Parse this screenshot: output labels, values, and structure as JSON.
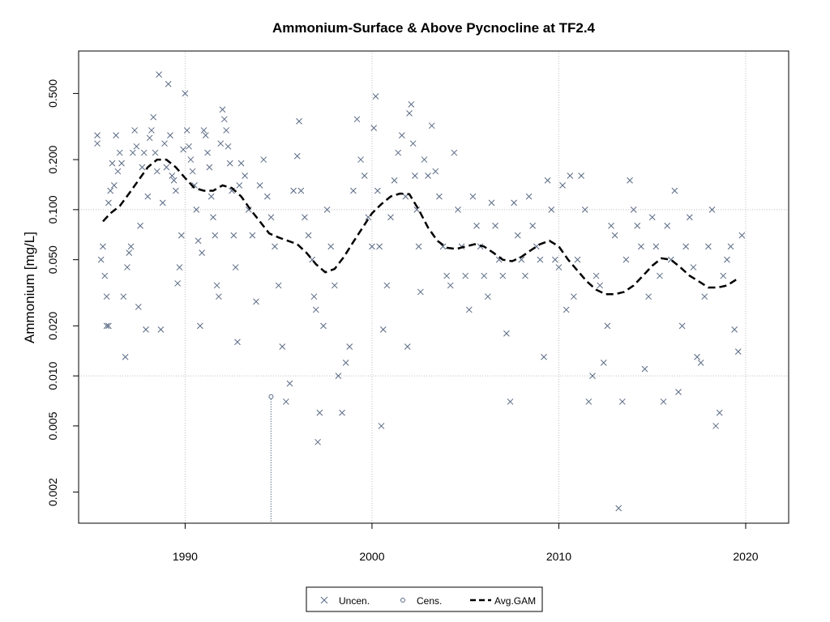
{
  "chart_data": {
    "type": "scatter",
    "title": "Ammonium-Surface & Above Pycnocline at TF2.4",
    "xlabel": "",
    "ylabel": "Ammonium [mg/L]",
    "yscale": "log",
    "xlim": [
      1984.3,
      2022.3
    ],
    "ylim": [
      0.0013,
      0.9
    ],
    "xticks": [
      1990,
      2000,
      2010,
      2020
    ],
    "yticks": [
      0.002,
      0.005,
      0.01,
      0.02,
      0.05,
      0.1,
      0.2,
      0.5
    ],
    "ytick_labels": [
      "0.002",
      "0.005",
      "0.010",
      "0.020",
      "0.050",
      "0.100",
      "0.200",
      "0.500"
    ],
    "grid": true,
    "grid_x": [
      1990,
      2000,
      2010,
      2020
    ],
    "grid_y": [
      0.01,
      0.1
    ],
    "colors": {
      "uncensored": "#5a6a85",
      "censored": "#5a6a85",
      "gam": "#000000",
      "grid": "#bfbfbf"
    },
    "legend_position": "bottom-center",
    "legend": [
      {
        "label": "Uncen.",
        "marker": "x"
      },
      {
        "label": "Cens.",
        "marker": "circle"
      },
      {
        "label": "Avg.GAM",
        "marker": "dashed-line"
      }
    ],
    "series": [
      {
        "name": "Uncen.",
        "marker": "x",
        "points": [
          [
            1985.3,
            0.28
          ],
          [
            1985.3,
            0.25
          ],
          [
            1985.5,
            0.05
          ],
          [
            1985.6,
            0.06
          ],
          [
            1985.7,
            0.04
          ],
          [
            1985.8,
            0.02
          ],
          [
            1985.9,
            0.02
          ],
          [
            1985.8,
            0.03
          ],
          [
            1985.9,
            0.11
          ],
          [
            1986.0,
            0.13
          ],
          [
            1986.1,
            0.19
          ],
          [
            1986.2,
            0.14
          ],
          [
            1986.3,
            0.28
          ],
          [
            1986.4,
            0.17
          ],
          [
            1986.5,
            0.22
          ],
          [
            1986.6,
            0.19
          ],
          [
            1986.7,
            0.03
          ],
          [
            1986.8,
            0.013
          ],
          [
            1986.9,
            0.045
          ],
          [
            1987.0,
            0.055
          ],
          [
            1987.1,
            0.06
          ],
          [
            1987.2,
            0.22
          ],
          [
            1987.3,
            0.3
          ],
          [
            1987.4,
            0.24
          ],
          [
            1987.5,
            0.026
          ],
          [
            1987.6,
            0.08
          ],
          [
            1987.7,
            0.18
          ],
          [
            1987.8,
            0.22
          ],
          [
            1987.9,
            0.019
          ],
          [
            1988.0,
            0.12
          ],
          [
            1988.1,
            0.27
          ],
          [
            1988.2,
            0.3
          ],
          [
            1988.3,
            0.36
          ],
          [
            1988.4,
            0.22
          ],
          [
            1988.5,
            0.17
          ],
          [
            1988.6,
            0.65
          ],
          [
            1988.7,
            0.019
          ],
          [
            1988.8,
            0.11
          ],
          [
            1988.9,
            0.25
          ],
          [
            1989.0,
            0.18
          ],
          [
            1989.1,
            0.57
          ],
          [
            1989.2,
            0.28
          ],
          [
            1989.3,
            0.16
          ],
          [
            1989.4,
            0.15
          ],
          [
            1989.5,
            0.13
          ],
          [
            1989.6,
            0.036
          ],
          [
            1989.7,
            0.045
          ],
          [
            1989.8,
            0.07
          ],
          [
            1989.9,
            0.23
          ],
          [
            1990.0,
            0.5
          ],
          [
            1990.1,
            0.3
          ],
          [
            1990.2,
            0.24
          ],
          [
            1990.3,
            0.2
          ],
          [
            1990.4,
            0.17
          ],
          [
            1990.5,
            0.14
          ],
          [
            1990.6,
            0.1
          ],
          [
            1990.7,
            0.065
          ],
          [
            1990.8,
            0.02
          ],
          [
            1990.9,
            0.055
          ],
          [
            1991.0,
            0.3
          ],
          [
            1991.1,
            0.28
          ],
          [
            1991.2,
            0.22
          ],
          [
            1991.3,
            0.18
          ],
          [
            1991.4,
            0.12
          ],
          [
            1991.5,
            0.09
          ],
          [
            1991.6,
            0.07
          ],
          [
            1991.7,
            0.035
          ],
          [
            1991.8,
            0.03
          ],
          [
            1991.9,
            0.25
          ],
          [
            1992.0,
            0.4
          ],
          [
            1992.1,
            0.35
          ],
          [
            1992.2,
            0.3
          ],
          [
            1992.3,
            0.24
          ],
          [
            1992.4,
            0.19
          ],
          [
            1992.5,
            0.13
          ],
          [
            1992.6,
            0.07
          ],
          [
            1992.7,
            0.045
          ],
          [
            1992.8,
            0.016
          ],
          [
            1992.9,
            0.14
          ],
          [
            1993.0,
            0.19
          ],
          [
            1993.2,
            0.16
          ],
          [
            1993.4,
            0.1
          ],
          [
            1993.6,
            0.07
          ],
          [
            1993.8,
            0.028
          ],
          [
            1994.0,
            0.14
          ],
          [
            1994.2,
            0.2
          ],
          [
            1994.4,
            0.12
          ],
          [
            1994.6,
            0.09
          ],
          [
            1994.8,
            0.06
          ],
          [
            1995.0,
            0.035
          ],
          [
            1995.2,
            0.015
          ],
          [
            1995.4,
            0.007
          ],
          [
            1995.6,
            0.009
          ],
          [
            1995.8,
            0.13
          ],
          [
            1996.0,
            0.21
          ],
          [
            1996.1,
            0.34
          ],
          [
            1996.2,
            0.13
          ],
          [
            1996.4,
            0.09
          ],
          [
            1996.6,
            0.07
          ],
          [
            1996.8,
            0.05
          ],
          [
            1996.9,
            0.03
          ],
          [
            1997.0,
            0.025
          ],
          [
            1997.1,
            0.004
          ],
          [
            1997.2,
            0.006
          ],
          [
            1997.4,
            0.02
          ],
          [
            1997.6,
            0.1
          ],
          [
            1997.8,
            0.06
          ],
          [
            1998.0,
            0.035
          ],
          [
            1998.2,
            0.01
          ],
          [
            1998.4,
            0.006
          ],
          [
            1998.6,
            0.012
          ],
          [
            1998.8,
            0.015
          ],
          [
            1999.0,
            0.13
          ],
          [
            1999.2,
            0.35
          ],
          [
            1999.4,
            0.2
          ],
          [
            1999.6,
            0.16
          ],
          [
            1999.8,
            0.09
          ],
          [
            2000.0,
            0.06
          ],
          [
            2000.1,
            0.31
          ],
          [
            2000.2,
            0.48
          ],
          [
            2000.3,
            0.13
          ],
          [
            2000.4,
            0.06
          ],
          [
            2000.5,
            0.005
          ],
          [
            2000.6,
            0.019
          ],
          [
            2000.8,
            0.035
          ],
          [
            2001.0,
            0.09
          ],
          [
            2001.2,
            0.15
          ],
          [
            2001.4,
            0.22
          ],
          [
            2001.6,
            0.28
          ],
          [
            2001.8,
            0.12
          ],
          [
            2001.9,
            0.015
          ],
          [
            2002.0,
            0.38
          ],
          [
            2002.1,
            0.43
          ],
          [
            2002.2,
            0.25
          ],
          [
            2002.3,
            0.16
          ],
          [
            2002.4,
            0.1
          ],
          [
            2002.5,
            0.06
          ],
          [
            2002.6,
            0.032
          ],
          [
            2002.8,
            0.2
          ],
          [
            2003.0,
            0.16
          ],
          [
            2003.2,
            0.32
          ],
          [
            2003.4,
            0.17
          ],
          [
            2003.6,
            0.12
          ],
          [
            2003.8,
            0.06
          ],
          [
            2004.0,
            0.04
          ],
          [
            2004.2,
            0.035
          ],
          [
            2004.4,
            0.22
          ],
          [
            2004.6,
            0.1
          ],
          [
            2004.8,
            0.06
          ],
          [
            2005.0,
            0.04
          ],
          [
            2005.2,
            0.025
          ],
          [
            2005.4,
            0.12
          ],
          [
            2005.6,
            0.08
          ],
          [
            2005.8,
            0.06
          ],
          [
            2006.0,
            0.04
          ],
          [
            2006.2,
            0.03
          ],
          [
            2006.4,
            0.11
          ],
          [
            2006.6,
            0.08
          ],
          [
            2006.8,
            0.05
          ],
          [
            2007.0,
            0.04
          ],
          [
            2007.2,
            0.018
          ],
          [
            2007.4,
            0.007
          ],
          [
            2007.6,
            0.11
          ],
          [
            2007.8,
            0.07
          ],
          [
            2008.0,
            0.05
          ],
          [
            2008.2,
            0.04
          ],
          [
            2008.4,
            0.12
          ],
          [
            2008.6,
            0.08
          ],
          [
            2008.8,
            0.06
          ],
          [
            2009.0,
            0.05
          ],
          [
            2009.2,
            0.013
          ],
          [
            2009.4,
            0.15
          ],
          [
            2009.6,
            0.1
          ],
          [
            2009.8,
            0.05
          ],
          [
            2010.0,
            0.045
          ],
          [
            2010.2,
            0.14
          ],
          [
            2010.4,
            0.025
          ],
          [
            2010.6,
            0.16
          ],
          [
            2010.8,
            0.03
          ],
          [
            2011.0,
            0.05
          ],
          [
            2011.2,
            0.16
          ],
          [
            2011.4,
            0.1
          ],
          [
            2011.6,
            0.007
          ],
          [
            2011.8,
            0.01
          ],
          [
            2012.0,
            0.04
          ],
          [
            2012.2,
            0.035
          ],
          [
            2012.4,
            0.012
          ],
          [
            2012.6,
            0.02
          ],
          [
            2012.8,
            0.08
          ],
          [
            2013.0,
            0.07
          ],
          [
            2013.2,
            0.0016
          ],
          [
            2013.4,
            0.007
          ],
          [
            2013.6,
            0.05
          ],
          [
            2013.8,
            0.15
          ],
          [
            2014.0,
            0.1
          ],
          [
            2014.2,
            0.08
          ],
          [
            2014.4,
            0.06
          ],
          [
            2014.6,
            0.011
          ],
          [
            2014.8,
            0.03
          ],
          [
            2015.0,
            0.09
          ],
          [
            2015.2,
            0.06
          ],
          [
            2015.4,
            0.04
          ],
          [
            2015.6,
            0.007
          ],
          [
            2015.8,
            0.08
          ],
          [
            2016.0,
            0.05
          ],
          [
            2016.2,
            0.13
          ],
          [
            2016.4,
            0.008
          ],
          [
            2016.6,
            0.02
          ],
          [
            2016.8,
            0.06
          ],
          [
            2017.0,
            0.09
          ],
          [
            2017.2,
            0.045
          ],
          [
            2017.4,
            0.013
          ],
          [
            2017.6,
            0.012
          ],
          [
            2017.8,
            0.03
          ],
          [
            2018.0,
            0.06
          ],
          [
            2018.2,
            0.1
          ],
          [
            2018.4,
            0.005
          ],
          [
            2018.6,
            0.006
          ],
          [
            2018.8,
            0.04
          ],
          [
            2019.0,
            0.05
          ],
          [
            2019.2,
            0.06
          ],
          [
            2019.4,
            0.019
          ],
          [
            2019.6,
            0.014
          ],
          [
            2019.8,
            0.07
          ]
        ]
      },
      {
        "name": "Cens.",
        "marker": "circle",
        "points": [
          [
            1994.6,
            0.0075
          ]
        ],
        "censored_lower": 0.0013
      },
      {
        "name": "Avg.GAM",
        "marker": "dashed-line",
        "x": [
          1985.6,
          1986.0,
          1986.5,
          1987.0,
          1987.5,
          1988.0,
          1988.5,
          1989.0,
          1989.5,
          1990.0,
          1990.5,
          1991.0,
          1991.5,
          1992.0,
          1992.5,
          1993.0,
          1993.5,
          1994.0,
          1994.5,
          1995.0,
          1995.5,
          1996.0,
          1996.5,
          1997.0,
          1997.5,
          1998.0,
          1998.5,
          1999.0,
          1999.5,
          2000.0,
          2000.5,
          2001.0,
          2001.5,
          2002.0,
          2002.5,
          2003.0,
          2003.5,
          2004.0,
          2004.5,
          2005.0,
          2005.5,
          2006.0,
          2006.5,
          2007.0,
          2007.5,
          2008.0,
          2008.5,
          2009.0,
          2009.5,
          2010.0,
          2010.5,
          2011.0,
          2011.5,
          2012.0,
          2012.5,
          2013.0,
          2013.5,
          2014.0,
          2014.5,
          2015.0,
          2015.5,
          2016.0,
          2016.5,
          2017.0,
          2017.5,
          2018.0,
          2018.5,
          2019.0,
          2019.5
        ],
        "y": [
          0.085,
          0.095,
          0.105,
          0.125,
          0.15,
          0.18,
          0.2,
          0.2,
          0.18,
          0.155,
          0.135,
          0.13,
          0.13,
          0.14,
          0.135,
          0.12,
          0.1,
          0.085,
          0.072,
          0.068,
          0.065,
          0.062,
          0.055,
          0.047,
          0.042,
          0.044,
          0.052,
          0.064,
          0.078,
          0.095,
          0.108,
          0.12,
          0.125,
          0.124,
          0.1,
          0.078,
          0.065,
          0.059,
          0.058,
          0.06,
          0.062,
          0.06,
          0.055,
          0.05,
          0.049,
          0.052,
          0.057,
          0.062,
          0.065,
          0.06,
          0.05,
          0.043,
          0.037,
          0.033,
          0.031,
          0.031,
          0.032,
          0.035,
          0.04,
          0.046,
          0.051,
          0.05,
          0.045,
          0.04,
          0.037,
          0.034,
          0.034,
          0.035,
          0.038
        ]
      }
    ]
  }
}
